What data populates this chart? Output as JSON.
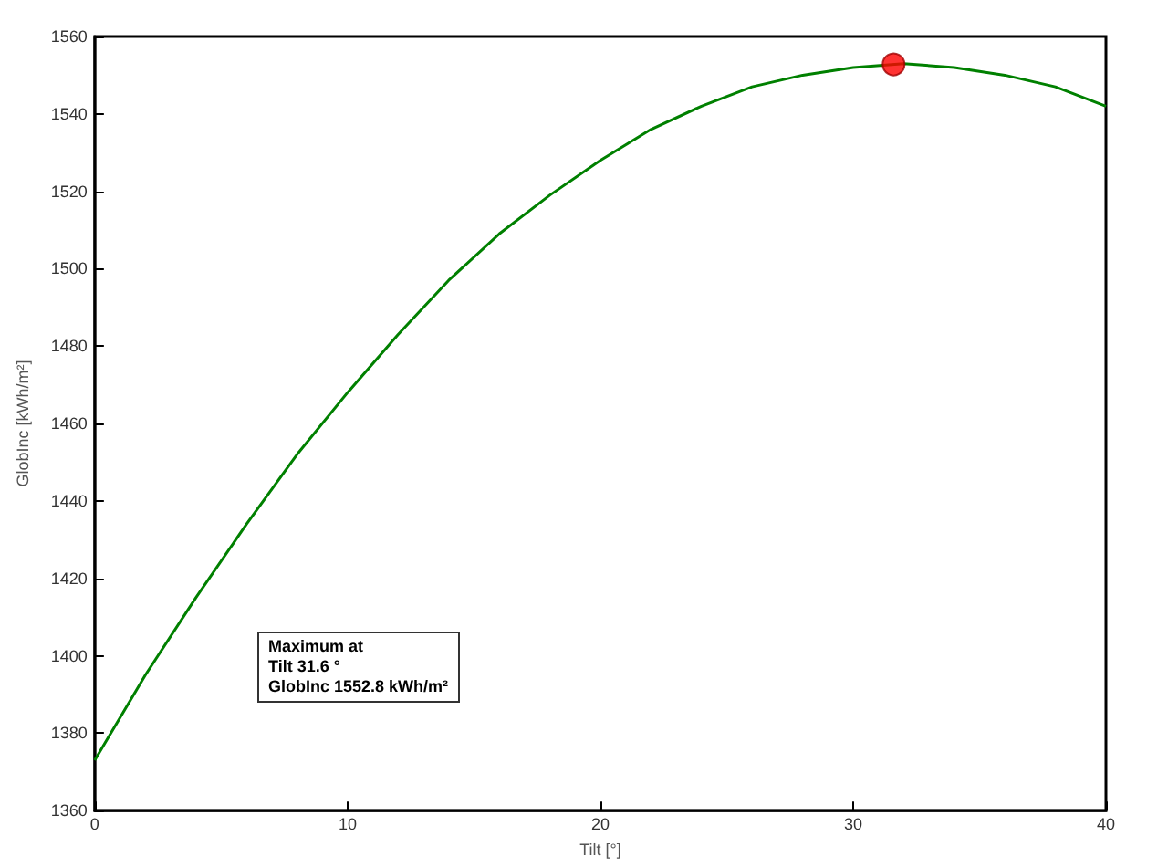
{
  "chart_data": {
    "type": "line",
    "xlabel": "Tilt [°]",
    "ylabel": "GlobInc [kWh/m²]",
    "xlim": [
      0,
      40
    ],
    "xticks": [
      0,
      10,
      20,
      30,
      40
    ],
    "ylim": [
      1360,
      1560
    ],
    "yticks": [
      1360,
      1380,
      1400,
      1420,
      1440,
      1460,
      1480,
      1500,
      1520,
      1540,
      1560
    ],
    "grid": false,
    "annotations": [
      "Maximum at\nTilt 31.6 °\nGlobInc 1552.8 kWh/m²"
    ],
    "series": [
      {
        "color": "#008000",
        "marker": "none",
        "x": [
          0,
          2,
          4,
          6,
          8,
          10,
          12,
          14,
          16,
          18,
          20,
          22,
          24,
          26,
          28,
          30,
          32,
          34,
          36,
          38,
          40
        ],
        "values": [
          1373,
          1395,
          1415,
          1434,
          1452,
          1468,
          1483,
          1497,
          1509,
          1519,
          1528,
          1536,
          1542,
          1547,
          1550,
          1552,
          1553,
          1552,
          1550,
          1547,
          1542
        ]
      },
      {
        "type": "scatter",
        "color": "#ff0000",
        "marker": "circle",
        "x": [
          31.6
        ],
        "values": [
          1552.8
        ]
      }
    ]
  }
}
